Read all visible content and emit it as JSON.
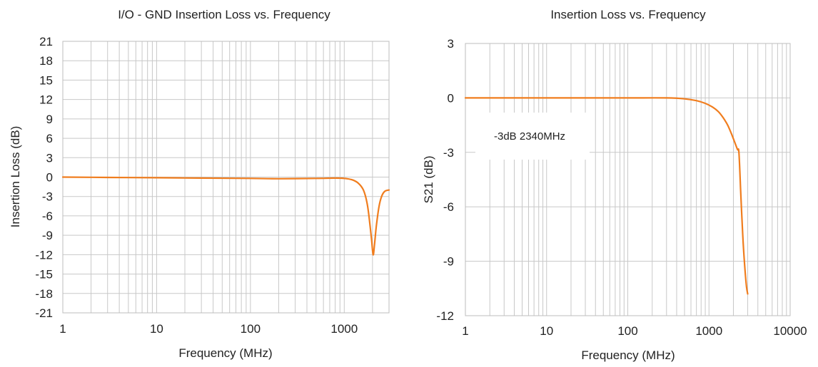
{
  "colors": {
    "series": "#f07d1e",
    "grid": "#c8c8c8",
    "text": "#222222",
    "background": "#ffffff"
  },
  "chart_data": [
    {
      "type": "line",
      "title": "I/O - GND Insertion Loss vs. Frequency",
      "xlabel": "Frequency  (MHz)",
      "ylabel": "Insertion Loss (dB)",
      "xscale": "log",
      "xlim": [
        1,
        3000
      ],
      "ylim": [
        -21,
        21
      ],
      "xticks": [
        1,
        10,
        100,
        1000
      ],
      "xtick_labels": [
        "1",
        "10",
        "100",
        "1000"
      ],
      "yticks": [
        21,
        18,
        15,
        12,
        9,
        6,
        3,
        0,
        -3,
        -6,
        -9,
        -12,
        -15,
        -18,
        -21
      ],
      "ytick_labels": [
        "21",
        "18",
        "15",
        "12",
        "9",
        "6",
        "3",
        "0",
        "-3",
        "-6",
        "-9",
        "-12",
        "-15",
        "-18",
        "-21"
      ],
      "grid": true,
      "series": [
        {
          "x": [
            1,
            3,
            10,
            30,
            100,
            200,
            500,
            800,
            1000,
            1200,
            1400,
            1600,
            1750,
            1850,
            1950,
            2030,
            2100,
            2200,
            2350,
            2500,
            2700,
            3000
          ],
          "y": [
            0,
            -0.05,
            -0.1,
            -0.15,
            -0.2,
            -0.25,
            -0.2,
            -0.15,
            -0.2,
            -0.4,
            -0.9,
            -2.0,
            -4.0,
            -6.5,
            -9.5,
            -12.0,
            -10.5,
            -7.5,
            -4.5,
            -3.0,
            -2.2,
            -2.0
          ]
        }
      ]
    },
    {
      "type": "line",
      "title": "Insertion Loss vs. Frequency",
      "xlabel": "Frequency  (MHz)",
      "ylabel": "S21  (dB)",
      "xscale": "log",
      "xlim": [
        1,
        10000
      ],
      "ylim": [
        -12,
        3
      ],
      "xticks": [
        1,
        10,
        100,
        1000,
        10000
      ],
      "xtick_labels": [
        "1",
        "10",
        "100",
        "1000",
        "10000"
      ],
      "yticks": [
        3,
        0,
        -3,
        -6,
        -9,
        -12
      ],
      "ytick_labels": [
        "3",
        "0",
        "-3",
        "-6",
        "-9",
        "-12"
      ],
      "grid": true,
      "annotation": "-3dB  2340MHz",
      "series": [
        {
          "x": [
            1,
            3,
            10,
            30,
            100,
            300,
            500,
            700,
            900,
            1100,
            1300,
            1500,
            1700,
            1900,
            2100,
            2250,
            2340,
            2450,
            2600,
            2750,
            2900,
            3000
          ],
          "y": [
            0,
            0,
            0,
            0,
            0,
            0,
            -0.05,
            -0.15,
            -0.3,
            -0.5,
            -0.75,
            -1.1,
            -1.5,
            -2.0,
            -2.5,
            -2.85,
            -3.0,
            -5.0,
            -7.5,
            -9.2,
            -10.4,
            -10.8
          ]
        }
      ]
    }
  ]
}
